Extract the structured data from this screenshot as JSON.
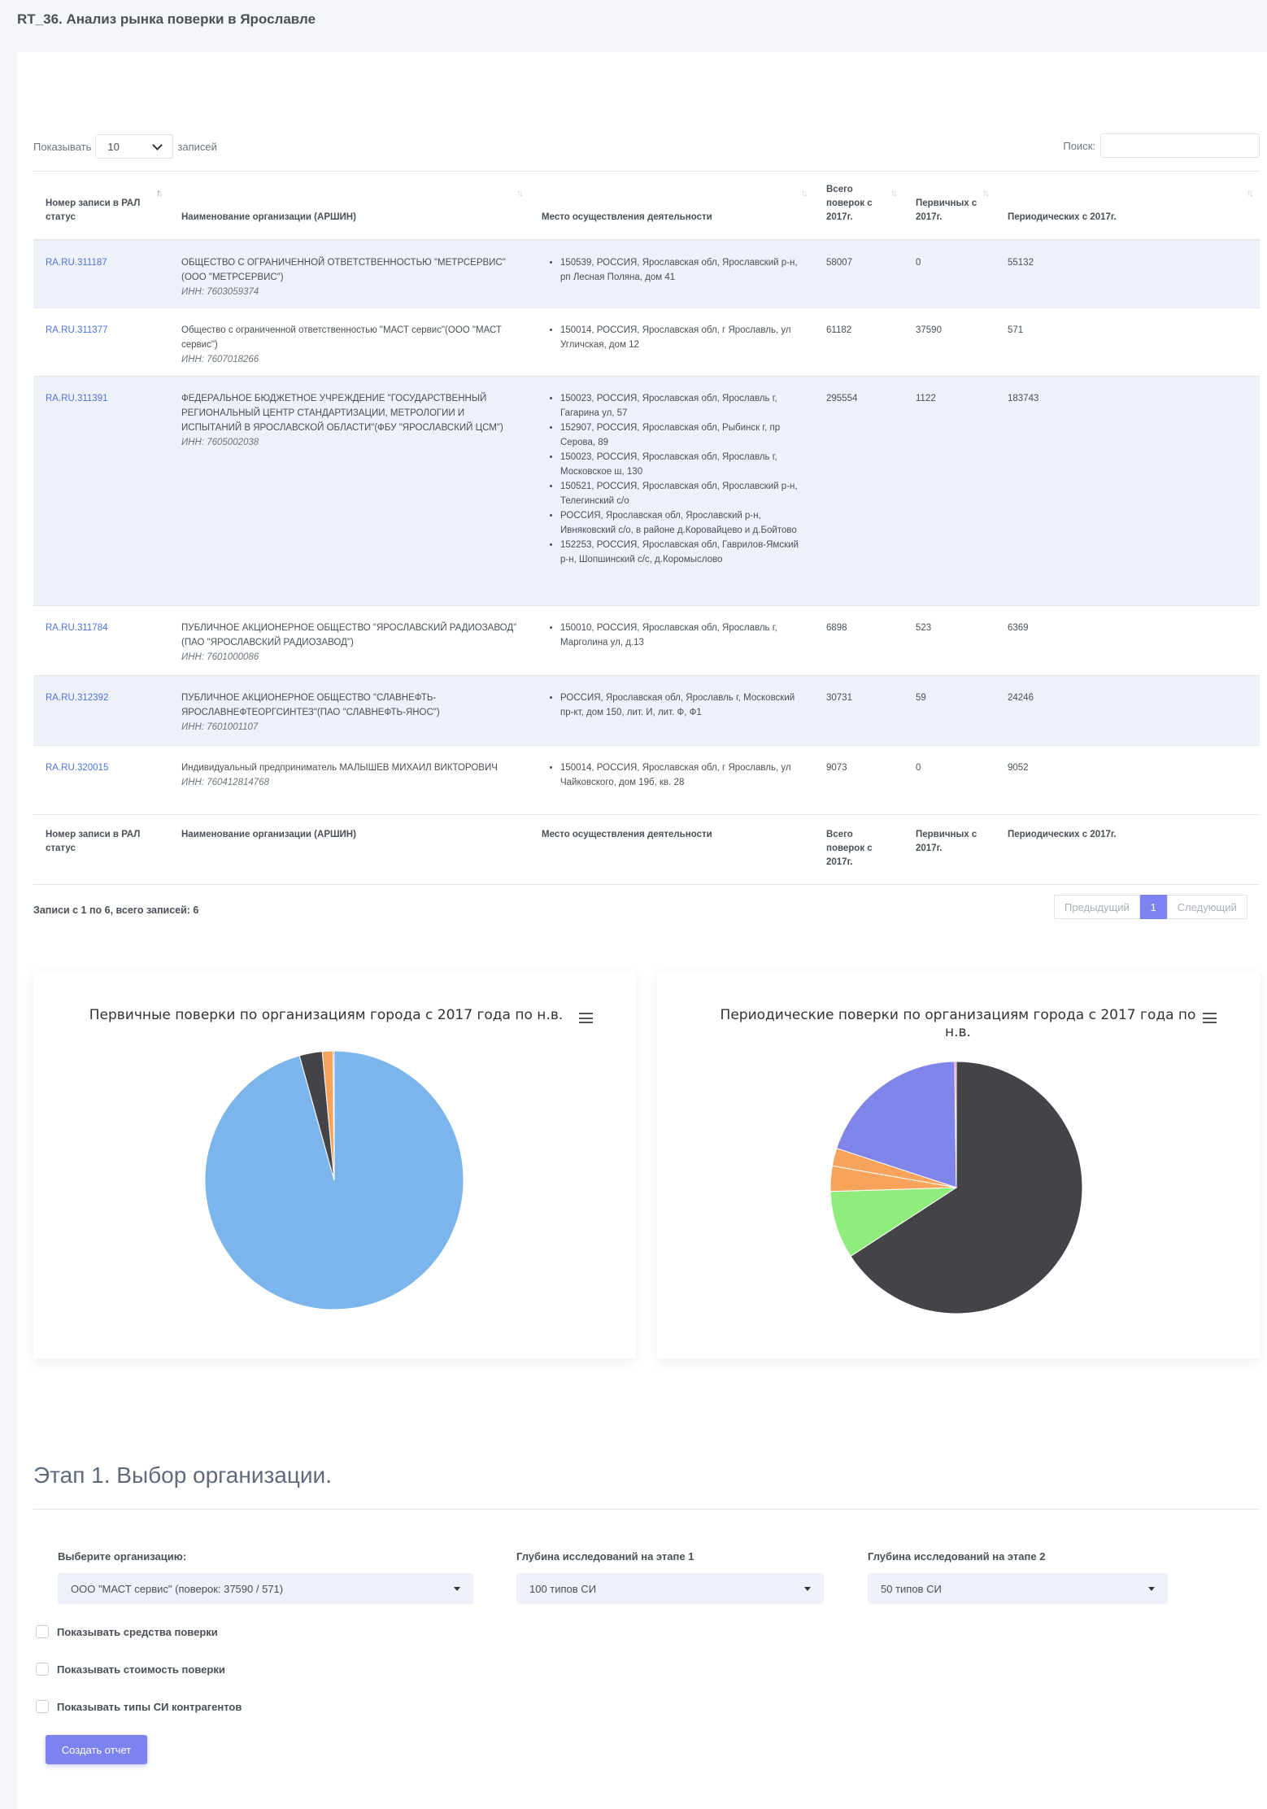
{
  "page_title": "RT_36. Анализ рынка поверки в Ярославле",
  "table_controls": {
    "show_label": "Показывать",
    "page_size": "10",
    "records_label": "записей",
    "search_label": "Поиск:",
    "search_value": ""
  },
  "table": {
    "columns": [
      "Номер записи в РАЛ статус",
      "Наименование организации (АРШИН)",
      "Место осуществления деятельности",
      "Всего поверок с 2017г.",
      "Первичных с 2017г.",
      "Периодических с 2017г."
    ],
    "rows": [
      {
        "record": "RA.RU.311187",
        "org": "ОБЩЕСТВО С ОГРАНИЧЕННОЙ ОТВЕТСТВЕННОСТЬЮ \"МЕТРСЕРВИС\"(ООО \"МЕТРСЕРВИС\")",
        "inn": "ИНН: 7603059374",
        "locations": [
          "150539, РОССИЯ, Ярославская обл, Ярославский р-н, рп Лесная Поляна, дом 41"
        ],
        "total": "58007",
        "primary": "0",
        "periodic": "55132"
      },
      {
        "record": "RA.RU.311377",
        "org": "Общество с ограниченной ответственностью \"МАСТ сервис\"(ООО \"МАСТ сервис\")",
        "inn": "ИНН: 7607018266",
        "locations": [
          "150014, РОССИЯ, Ярославская обл, г Ярославль, ул Угличская, дом 12"
        ],
        "total": "61182",
        "primary": "37590",
        "periodic": "571"
      },
      {
        "record": "RA.RU.311391",
        "org": "ФЕДЕРАЛЬНОЕ БЮДЖЕТНОЕ УЧРЕЖДЕНИЕ \"ГОСУДАРСТВЕННЫЙ РЕГИОНАЛЬНЫЙ ЦЕНТР СТАНДАРТИЗАЦИИ, МЕТРОЛОГИИ И ИСПЫТАНИЙ В ЯРОСЛАВСКОЙ ОБЛАСТИ\"(ФБУ \"ЯРОСЛАВСКИЙ ЦСМ\")",
        "inn": "ИНН: 7605002038",
        "locations": [
          "150023, РОССИЯ, Ярославская обл, Ярославль г, Гагарина ул, 57",
          "152907, РОССИЯ, Ярославская обл, Рыбинск г, пр Серова, 89",
          "150023, РОССИЯ, Ярославская обл, Ярославль г, Московское ш, 130",
          "150521, РОССИЯ, Ярославская обл, Ярославский р-н, Телегинский с/о",
          "РОССИЯ, Ярославская обл, Ярославский р-н, Ивняковский с/о, в районе д.Коровайцево и д.Бойтово",
          "152253, РОССИЯ, Ярославская обл, Гаврилов-Ямский р-н, Шопшинский с/с, д.Коромыслово"
        ],
        "total": "295554",
        "primary": "1122",
        "periodic": "183743"
      },
      {
        "record": "RA.RU.311784",
        "org": "ПУБЛИЧНОЕ АКЦИОНЕРНОЕ ОБЩЕСТВО \"ЯРОСЛАВСКИЙ РАДИОЗАВОД\"(ПАО \"ЯРОСЛАВСКИЙ РАДИОЗАВОД\")",
        "inn": "ИНН: 7601000086",
        "locations": [
          "150010, РОССИЯ, Ярославская обл, Ярославль г, Марголина ул, д.13"
        ],
        "total": "6898",
        "primary": "523",
        "periodic": "6369"
      },
      {
        "record": "RA.RU.312392",
        "org": "ПУБЛИЧНОЕ АКЦИОНЕРНОЕ ОБЩЕСТВО \"СЛАВНЕФТЬ-ЯРОСЛАВНЕФТЕОРГСИНТЕЗ\"(ПАО \"СЛАВНЕФТЬ-ЯНОС\")",
        "inn": "ИНН: 7601001107",
        "locations": [
          "РОССИЯ, Ярославская обл, Ярославль г, Московский пр-кт, дом 150, лит. И, лит. Ф, Ф1"
        ],
        "total": "30731",
        "primary": "59",
        "periodic": "24246"
      },
      {
        "record": "RA.RU.320015",
        "org": "Индивидуальный предприниматель МАЛЫШЕВ МИХАИЛ ВИКТОРОВИЧ",
        "inn": "ИНН: 760412814768",
        "locations": [
          "150014, РОССИЯ, Ярославская обл, г Ярославль, ул Чайковского, дом 19б, кв. 28"
        ],
        "total": "9073",
        "primary": "0",
        "periodic": "9052"
      }
    ]
  },
  "table_info": "Записи с 1 по 6, всего записей: 6",
  "pagination": {
    "prev": "Предыдущий",
    "current": "1",
    "next": "Следующий"
  },
  "chart_data": [
    {
      "type": "pie",
      "title": "Первичные поверки по организациям города с 2017 года по н.в.",
      "values": [
        37590,
        1122,
        523,
        59,
        0,
        0
      ],
      "colors": [
        "#7cb5ec",
        "#434348",
        "#f7a35c",
        "#8085e9",
        "#90ed7d",
        "#f15c80"
      ]
    },
    {
      "type": "pie",
      "title": "Периодические поверки по организациям города с 2017 года по н.в.",
      "values": [
        183743,
        24246,
        9052,
        6369,
        55132,
        571
      ],
      "colors": [
        "#434348",
        "#90ed7d",
        "#f7a35c",
        "#f7a35c",
        "#8085e9",
        "#f15c80"
      ]
    }
  ],
  "stage1": {
    "title": "Этап 1. Выбор организации.",
    "org_label": "Выберите организацию:",
    "org_value": "ООО \"МАСТ сервис\" (поверок: 37590 / 571)",
    "depth1_label": "Глубина исследований на этапе 1",
    "depth1_value": "100 типов СИ",
    "depth2_label": "Глубина исследований на этапе 2",
    "depth2_value": "50 типов СИ",
    "checkboxes": [
      "Показывать средства поверки",
      "Показывать стоимость поверки",
      "Показывать типы СИ контрагентов"
    ],
    "create_button": "Создать отчет"
  }
}
